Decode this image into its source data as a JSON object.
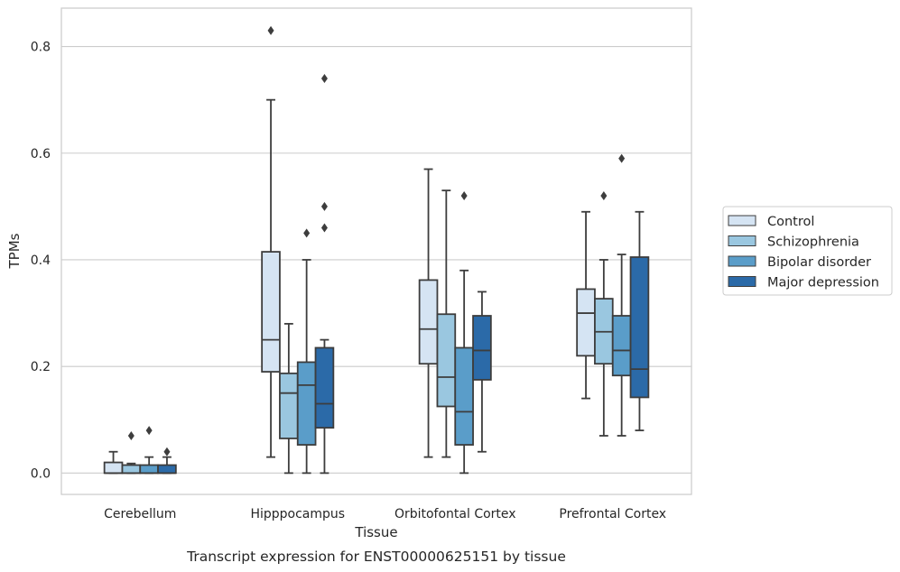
{
  "chart_data": {
    "type": "box",
    "caption": "Transcript expression for ENST00000625151 by tissue",
    "xlabel": "Tissue",
    "ylabel": "TPMs",
    "ylim": [
      -0.04,
      0.872
    ],
    "yticks": [
      0.0,
      0.2,
      0.4,
      0.6,
      0.8
    ],
    "grid": "horizontal",
    "legend_placement": "right, outside plot",
    "categories": [
      "Cerebellum",
      "Hipppocampus",
      "Orbitofontal Cortex",
      "Prefrontal Cortex"
    ],
    "series": [
      {
        "name": "Control",
        "color": "#d5e4f3",
        "boxes": [
          {
            "whislo": 0.0,
            "q1": 0.0,
            "med": 0.0,
            "q3": 0.02,
            "whishi": 0.04,
            "fliers": []
          },
          {
            "whislo": 0.03,
            "q1": 0.19,
            "med": 0.25,
            "q3": 0.415,
            "whishi": 0.7,
            "fliers": [
              0.83
            ]
          },
          {
            "whislo": 0.03,
            "q1": 0.205,
            "med": 0.27,
            "q3": 0.362,
            "whishi": 0.57,
            "fliers": []
          },
          {
            "whislo": 0.14,
            "q1": 0.22,
            "med": 0.3,
            "q3": 0.345,
            "whishi": 0.49,
            "fliers": []
          }
        ]
      },
      {
        "name": "Schizophrenia",
        "color": "#9ac7e0",
        "boxes": [
          {
            "whislo": 0.0,
            "q1": 0.0,
            "med": 0.0,
            "q3": 0.015,
            "whishi": 0.018,
            "fliers": [
              0.07
            ]
          },
          {
            "whislo": 0.0,
            "q1": 0.065,
            "med": 0.15,
            "q3": 0.187,
            "whishi": 0.28,
            "fliers": []
          },
          {
            "whislo": 0.03,
            "q1": 0.125,
            "med": 0.18,
            "q3": 0.298,
            "whishi": 0.53,
            "fliers": []
          },
          {
            "whislo": 0.07,
            "q1": 0.205,
            "med": 0.265,
            "q3": 0.327,
            "whishi": 0.4,
            "fliers": [
              0.52
            ]
          }
        ]
      },
      {
        "name": "Bipolar disorder",
        "color": "#5a9dc9",
        "boxes": [
          {
            "whislo": 0.0,
            "q1": 0.0,
            "med": 0.0,
            "q3": 0.015,
            "whishi": 0.03,
            "fliers": [
              0.08
            ]
          },
          {
            "whislo": 0.0,
            "q1": 0.053,
            "med": 0.165,
            "q3": 0.208,
            "whishi": 0.4,
            "fliers": [
              0.45
            ]
          },
          {
            "whislo": 0.0,
            "q1": 0.053,
            "med": 0.115,
            "q3": 0.235,
            "whishi": 0.38,
            "fliers": [
              0.52
            ]
          },
          {
            "whislo": 0.07,
            "q1": 0.183,
            "med": 0.23,
            "q3": 0.295,
            "whishi": 0.41,
            "fliers": [
              0.59
            ]
          }
        ]
      },
      {
        "name": "Major depression",
        "color": "#2b6aa8",
        "boxes": [
          {
            "whislo": 0.0,
            "q1": 0.0,
            "med": 0.0,
            "q3": 0.015,
            "whishi": 0.03,
            "fliers": [
              0.04
            ]
          },
          {
            "whislo": 0.0,
            "q1": 0.085,
            "med": 0.13,
            "q3": 0.235,
            "whishi": 0.25,
            "fliers": [
              0.46,
              0.5,
              0.74
            ]
          },
          {
            "whislo": 0.04,
            "q1": 0.175,
            "med": 0.23,
            "q3": 0.295,
            "whishi": 0.34,
            "fliers": []
          },
          {
            "whislo": 0.08,
            "q1": 0.142,
            "med": 0.195,
            "q3": 0.405,
            "whishi": 0.49,
            "fliers": []
          }
        ]
      }
    ]
  }
}
